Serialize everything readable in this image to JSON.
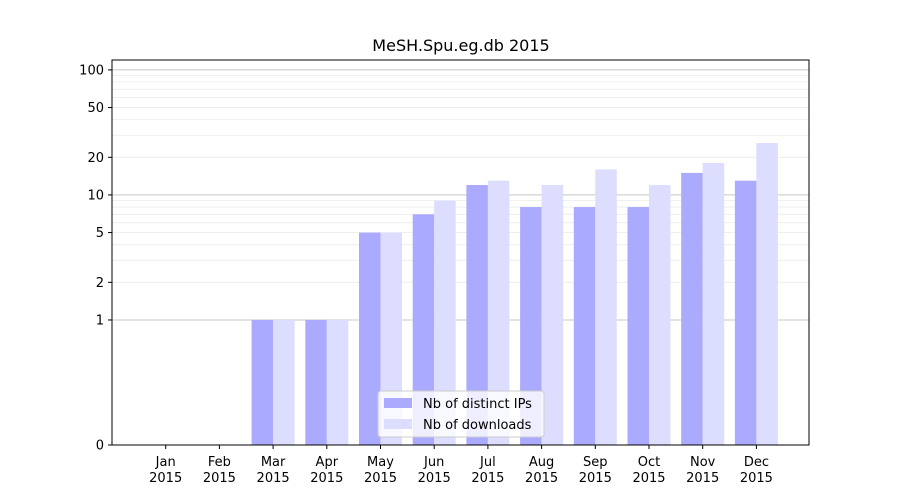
{
  "chart_data": {
    "type": "bar",
    "title": "MeSH.Spu.eg.db 2015",
    "xlabel": "",
    "ylabel": "",
    "y_scale": "symlog",
    "ylim": [
      0,
      120
    ],
    "y_ticks": [
      {
        "value": 0,
        "label": "0"
      },
      {
        "value": 1,
        "label": "1"
      },
      {
        "value": 2,
        "label": "2"
      },
      {
        "value": 5,
        "label": "5"
      },
      {
        "value": 10,
        "label": "10"
      },
      {
        "value": 20,
        "label": "20"
      },
      {
        "value": 50,
        "label": "50"
      },
      {
        "value": 100,
        "label": "100"
      }
    ],
    "categories": [
      {
        "month": "Jan",
        "year": "2015"
      },
      {
        "month": "Feb",
        "year": "2015"
      },
      {
        "month": "Mar",
        "year": "2015"
      },
      {
        "month": "Apr",
        "year": "2015"
      },
      {
        "month": "May",
        "year": "2015"
      },
      {
        "month": "Jun",
        "year": "2015"
      },
      {
        "month": "Jul",
        "year": "2015"
      },
      {
        "month": "Aug",
        "year": "2015"
      },
      {
        "month": "Sep",
        "year": "2015"
      },
      {
        "month": "Oct",
        "year": "2015"
      },
      {
        "month": "Nov",
        "year": "2015"
      },
      {
        "month": "Dec",
        "year": "2015"
      }
    ],
    "series": [
      {
        "name": "Nb of distinct IPs",
        "color": "#aaaaff",
        "values": [
          0,
          0,
          1,
          1,
          5,
          7,
          12,
          8,
          8,
          8,
          15,
          13
        ]
      },
      {
        "name": "Nb of downloads",
        "color": "#ddddff",
        "values": [
          0,
          0,
          1,
          1,
          5,
          9,
          13,
          12,
          16,
          12,
          18,
          26
        ]
      }
    ],
    "grid": "major horizontal lines at 1 and 10, faint minor lines",
    "legend_position": "bottom-center"
  }
}
